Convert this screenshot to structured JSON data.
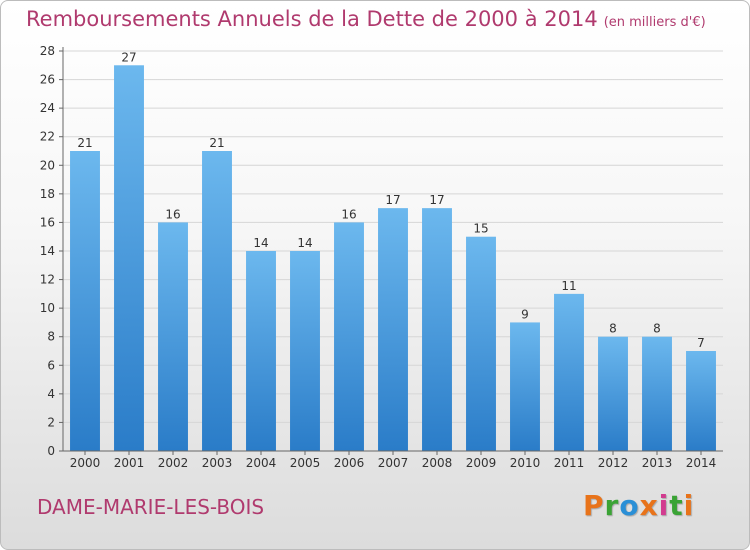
{
  "header": {
    "title": "Remboursements Annuels de la Dette de 2000 à 2014",
    "unit": "(en milliers d'€)"
  },
  "footer": {
    "commune": "DAME-MARIE-LES-BOIS",
    "brand": "Proxiti",
    "brand_colors": [
      "#e8731a",
      "#3aa335",
      "#2a8fd6",
      "#e8731a",
      "#d23b8f",
      "#3aa335",
      "#e8731a"
    ]
  },
  "colors": {
    "title": "#b03a6e",
    "bar_top": "#6cb8ee",
    "bar_bottom": "#2a7cc8",
    "grid": "#d6d6d6",
    "axis": "#666666",
    "label": "#333333"
  },
  "chart_data": {
    "type": "bar",
    "categories": [
      "2000",
      "2001",
      "2002",
      "2003",
      "2004",
      "2005",
      "2006",
      "2007",
      "2008",
      "2009",
      "2010",
      "2011",
      "2012",
      "2013",
      "2014"
    ],
    "values": [
      21,
      27,
      16,
      21,
      14,
      14,
      16,
      17,
      17,
      15,
      9,
      11,
      8,
      8,
      7
    ],
    "yticks": [
      0,
      2,
      4,
      6,
      8,
      10,
      12,
      14,
      16,
      18,
      20,
      22,
      24,
      26,
      28
    ],
    "ylim": [
      0,
      28
    ],
    "grid": true,
    "data_labels": true
  }
}
